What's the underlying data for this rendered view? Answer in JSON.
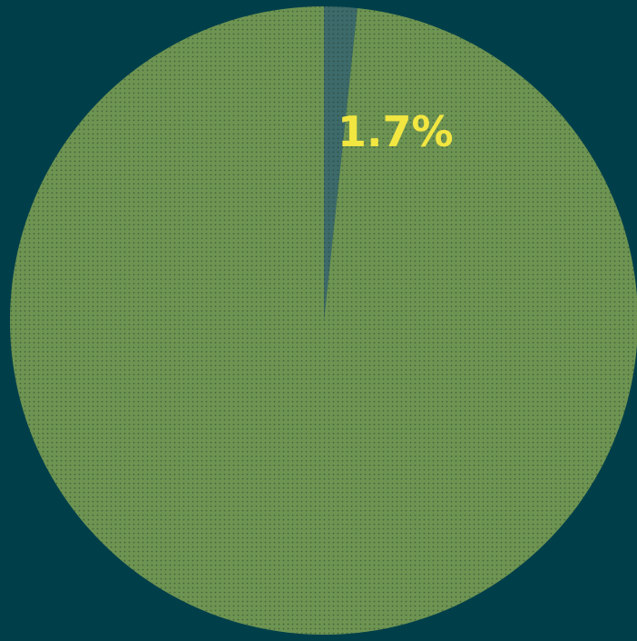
{
  "chart_data": {
    "type": "pie",
    "slices": [
      {
        "value": 1.7,
        "label": "1.7%",
        "color": "#3d6a6a"
      },
      {
        "value": 98.3,
        "label": "",
        "color": "#6e9452"
      }
    ],
    "label_color": "#f2e641",
    "background": "#003f4a",
    "texture": "dotted"
  }
}
